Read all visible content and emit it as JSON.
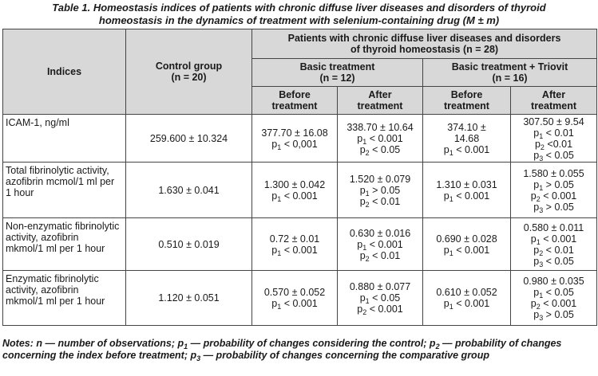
{
  "caption": {
    "line1": "Table 1. Homeostasis indices of patients with chronic diffuse liver diseases and disorders of thyroid",
    "line2": "homeostasis in the dynamics of treatment with selenium-containing drug (M ± m)"
  },
  "header": {
    "indices": "Indices",
    "control_line1": "Control group",
    "control_line2": "(n = 20)",
    "patients_line1": "Patients with chronic diffuse liver diseases and disorders",
    "patients_line2": "of thyroid homeostasis (n = 28)",
    "basic_line1": "Basic treatment",
    "basic_line2": "(n = 12)",
    "triovit_line1": "Basic treatment + Triovit",
    "triovit_line2": "(n = 16)",
    "before_line1": "Before",
    "before_line2": "treatment",
    "after_line1": "After",
    "after_line2": "treatment"
  },
  "rows": [
    {
      "index": [
        "ICAM-1, ng/ml"
      ],
      "control": "259.600 ± 10.324",
      "basic_before": [
        "377.70 ± 16.08",
        "p|1| < 0,001"
      ],
      "basic_after": [
        "338.70 ± 10.64",
        "p|1| < 0.001",
        "p|2| < 0.05"
      ],
      "triovit_before": [
        "374.10 ±",
        "14.68",
        "p|1| < 0.001"
      ],
      "triovit_after": [
        "307.50 ± 9.54",
        "p|1| < 0.01",
        "p|2| <0.01",
        "p|3| < 0.05"
      ]
    },
    {
      "index": [
        "Total fibrinolytic activity,",
        "azofibrin mcmol/1 ml per",
        "1 hour"
      ],
      "control": "1.630 ± 0.041",
      "basic_before": [
        "1.300 ± 0.042",
        "p|1| < 0.001"
      ],
      "basic_after": [
        "1.520 ± 0.079",
        "p|1| > 0.05",
        "p|2| < 0.01"
      ],
      "triovit_before": [
        "1.310 ± 0.031",
        "p|1| < 0.001"
      ],
      "triovit_after": [
        "1.580 ± 0.055",
        "p|1| > 0.05",
        "p|2| < 0.001",
        "p|3| > 0.05"
      ]
    },
    {
      "index": [
        "Non-enzymatic fibrinolytic",
        "activity, azofibrin",
        "mkmol/1 ml per 1 hour"
      ],
      "control": "0.510 ± 0.019",
      "basic_before": [
        "0.72 ± 0.01",
        "p|1| < 0.001"
      ],
      "basic_after": [
        "0.630 ± 0.016",
        "p|1| < 0.001",
        "p|2| < 0.01"
      ],
      "triovit_before": [
        "0.690 ± 0.028",
        "p|1| < 0.001"
      ],
      "triovit_after": [
        "0.580 ± 0.011",
        "p|1| < 0.001",
        "p|2| < 0.01",
        "p|3| < 0.05"
      ]
    },
    {
      "index": [
        "Enzymatic fibrinolytic",
        "activity, azofibrin",
        "mkmol/1 ml per 1 hour"
      ],
      "control": "1.120 ± 0.051",
      "basic_before": [
        "0.570 ± 0.052",
        "p|1| < 0.001"
      ],
      "basic_after": [
        "0.880 ± 0.077",
        "p|1| < 0.05",
        "p|2| < 0.001"
      ],
      "triovit_before": [
        "0.610 ± 0.052",
        "p|1| < 0.001"
      ],
      "triovit_after": [
        "0.980 ± 0.035",
        "p|1| < 0.05",
        "p|2| < 0.001",
        "p|3| > 0.05"
      ]
    }
  ],
  "notes": "Notes: n — number of observations; p|1| — probability of changes considering the control; p|2| — probability of changes concerning the index before treatment; p|3| — probability of changes concerning the comparative group"
}
